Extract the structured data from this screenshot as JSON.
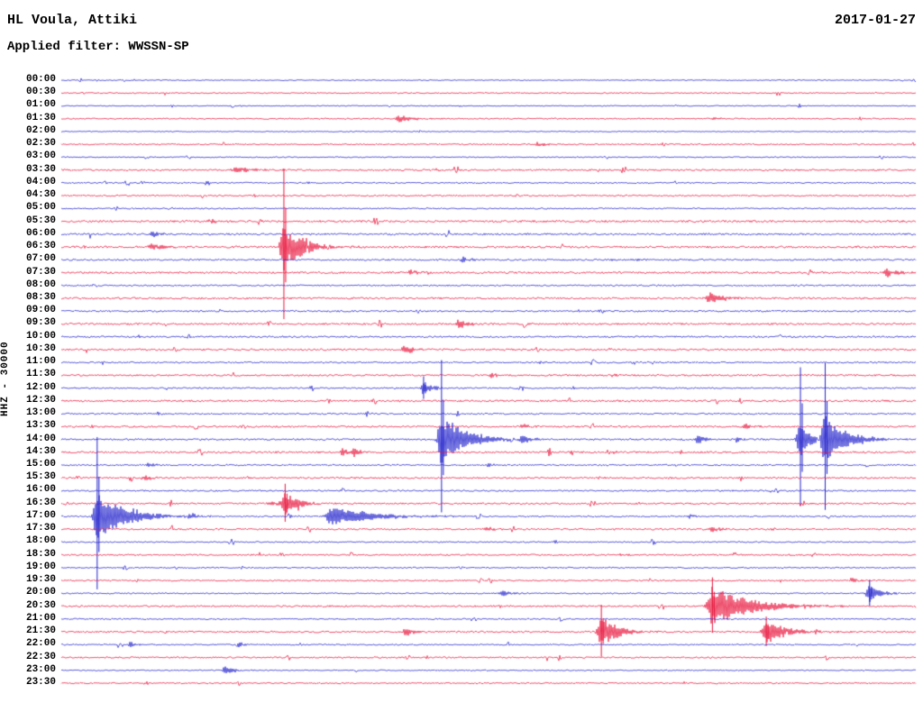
{
  "header": {
    "station": "HL Voula, Attiki",
    "filter": "Applied filter: WWSSN-SP",
    "date": "2017-01-27"
  },
  "chart_data": {
    "type": "line",
    "subtype": "helicorder-daily-seismogram",
    "title": "HL Voula, Attiki",
    "date": "2017-01-27",
    "filter": "WWSSN-SP",
    "y_axis_label": "HHZ - 30000",
    "row_interval_minutes": 30,
    "time_range": [
      "00:00",
      "23:30"
    ],
    "colors": {
      "hour_rows": "#2323cc",
      "half_hour_rows": "#e8173d"
    },
    "rows": [
      {
        "time": "00:00",
        "n": 0.5,
        "events": []
      },
      {
        "time": "00:30",
        "n": 0.6,
        "events": []
      },
      {
        "time": "01:00",
        "n": 0.5,
        "events": []
      },
      {
        "time": "01:30",
        "n": 0.7,
        "events": [
          {
            "x": 0.396,
            "a": 4,
            "r": 4,
            "d": 14
          },
          {
            "x": 0.762,
            "a": 2,
            "r": 2,
            "d": 8
          }
        ]
      },
      {
        "time": "02:00",
        "n": 0.5,
        "events": []
      },
      {
        "time": "02:30",
        "n": 0.7,
        "events": [
          {
            "x": 0.558,
            "a": 2.5,
            "r": 3,
            "d": 10
          }
        ]
      },
      {
        "time": "03:00",
        "n": 0.6,
        "events": []
      },
      {
        "time": "03:30",
        "n": 0.9,
        "events": [
          {
            "x": 0.205,
            "a": 3,
            "r": 6,
            "d": 20
          },
          {
            "x": 0.44,
            "a": 1.5,
            "r": 3,
            "d": 8
          }
        ]
      },
      {
        "time": "04:00",
        "n": 0.7,
        "events": []
      },
      {
        "time": "04:30",
        "n": 0.8,
        "events": []
      },
      {
        "time": "05:00",
        "n": 0.7,
        "events": []
      },
      {
        "time": "05:30",
        "n": 1.1,
        "events": [
          {
            "x": 0.175,
            "a": 2,
            "r": 4,
            "d": 12
          }
        ]
      },
      {
        "time": "06:00",
        "n": 1.0,
        "events": [
          {
            "x": 0.108,
            "a": 2.5,
            "r": 4,
            "d": 12
          }
        ]
      },
      {
        "time": "06:30",
        "n": 1.1,
        "events": [
          {
            "x": 0.106,
            "a": 4,
            "r": 5,
            "d": 16
          },
          {
            "x": 0.2605,
            "a": 26,
            "r": 4,
            "d": 20,
            "s": 87
          }
        ]
      },
      {
        "time": "07:00",
        "n": 0.9,
        "events": [
          {
            "x": 0.47,
            "a": 3,
            "r": 3,
            "d": 10
          },
          {
            "x": 0.667,
            "a": 2,
            "r": 2,
            "d": 8
          }
        ]
      },
      {
        "time": "07:30",
        "n": 1.0,
        "events": [
          {
            "x": 0.408,
            "a": 3,
            "r": 3,
            "d": 10
          },
          {
            "x": 0.967,
            "a": 5,
            "r": 4,
            "d": 12
          }
        ]
      },
      {
        "time": "08:00",
        "n": 0.8,
        "events": []
      },
      {
        "time": "08:30",
        "n": 1.0,
        "events": [
          {
            "x": 0.76,
            "a": 6,
            "r": 5,
            "d": 16
          }
        ]
      },
      {
        "time": "09:00",
        "n": 0.9,
        "events": [
          {
            "x": 0.63,
            "a": 2,
            "r": 2,
            "d": 8
          }
        ]
      },
      {
        "time": "09:30",
        "n": 1.0,
        "events": [
          {
            "x": 0.466,
            "a": 6,
            "r": 3,
            "d": 9
          }
        ]
      },
      {
        "time": "10:00",
        "n": 0.9,
        "events": []
      },
      {
        "time": "10:30",
        "n": 1.0,
        "events": [
          {
            "x": 0.403,
            "a": 5,
            "r": 4,
            "d": 12
          }
        ]
      },
      {
        "time": "11:00",
        "n": 0.8,
        "events": [
          {
            "x": 0.56,
            "a": 1.5,
            "r": 2,
            "d": 6
          }
        ]
      },
      {
        "time": "11:30",
        "n": 0.9,
        "events": [
          {
            "x": 0.503,
            "a": 3,
            "r": 3,
            "d": 9
          },
          {
            "x": 0.645,
            "a": 2,
            "r": 2,
            "d": 7
          }
        ]
      },
      {
        "time": "12:00",
        "n": 0.8,
        "events": [
          {
            "x": 0.424,
            "a": 7,
            "r": 3,
            "d": 10,
            "s": 13
          }
        ]
      },
      {
        "time": "12:30",
        "n": 1.0,
        "events": []
      },
      {
        "time": "13:00",
        "n": 0.8,
        "events": []
      },
      {
        "time": "13:30",
        "n": 0.9,
        "events": [
          {
            "x": 0.54,
            "a": 3,
            "r": 3,
            "d": 9
          },
          {
            "x": 0.8,
            "a": 3,
            "r": 3,
            "d": 9
          }
        ]
      },
      {
        "time": "14:00",
        "n": 0.9,
        "events": [
          {
            "x": 0.445,
            "a": 28,
            "r": 4,
            "d": 26,
            "s": 88
          },
          {
            "x": 0.54,
            "a": 4,
            "r": 3,
            "d": 9
          },
          {
            "x": 0.745,
            "a": 5,
            "r": 3,
            "d": 9
          },
          {
            "x": 0.79,
            "a": 3,
            "r": 2,
            "d": 7
          },
          {
            "x": 0.865,
            "a": 20,
            "r": 4,
            "d": 10,
            "s": 80
          },
          {
            "x": 0.894,
            "a": 28,
            "r": 4,
            "d": 22,
            "s": 85
          }
        ]
      },
      {
        "time": "14:30",
        "n": 1.0,
        "events": [
          {
            "x": 0.329,
            "a": 5,
            "r": 2,
            "d": 6
          },
          {
            "x": 0.343,
            "a": 5,
            "r": 2,
            "d": 7
          },
          {
            "x": 0.645,
            "a": 2,
            "r": 2,
            "d": 6
          },
          {
            "x": 0.725,
            "a": 2,
            "r": 2,
            "d": 6
          }
        ]
      },
      {
        "time": "15:00",
        "n": 0.8,
        "events": [
          {
            "x": 0.102,
            "a": 3,
            "r": 3,
            "d": 9
          },
          {
            "x": 0.5,
            "a": 2,
            "r": 2,
            "d": 6
          }
        ]
      },
      {
        "time": "15:30",
        "n": 0.9,
        "events": [
          {
            "x": 0.097,
            "a": 3,
            "r": 3,
            "d": 9
          }
        ]
      },
      {
        "time": "16:00",
        "n": 0.8,
        "events": []
      },
      {
        "time": "16:30",
        "n": 0.9,
        "events": [
          {
            "x": 0.245,
            "a": 3,
            "r": 3,
            "d": 8
          },
          {
            "x": 0.262,
            "a": 13,
            "r": 4,
            "d": 14,
            "s": 22
          }
        ]
      },
      {
        "time": "17:00",
        "n": 0.8,
        "events": [
          {
            "x": 0.042,
            "a": 26,
            "r": 4,
            "d": 30,
            "s": 88
          },
          {
            "x": 0.15,
            "a": 2,
            "r": 2,
            "d": 6
          },
          {
            "x": 0.316,
            "a": 10,
            "r": 6,
            "d": 45
          },
          {
            "x": 0.735,
            "a": 2.5,
            "r": 2,
            "d": 6
          }
        ]
      },
      {
        "time": "17:30",
        "n": 0.9,
        "events": [
          {
            "x": 0.498,
            "a": 3,
            "r": 3,
            "d": 9
          },
          {
            "x": 0.762,
            "a": 3,
            "r": 3,
            "d": 9
          }
        ]
      },
      {
        "time": "18:00",
        "n": 0.7,
        "events": []
      },
      {
        "time": "18:30",
        "n": 0.8,
        "events": [
          {
            "x": 0.655,
            "a": 2,
            "r": 2,
            "d": 6
          }
        ]
      },
      {
        "time": "19:00",
        "n": 0.7,
        "events": []
      },
      {
        "time": "19:30",
        "n": 0.8,
        "events": [
          {
            "x": 0.925,
            "a": 3,
            "r": 2,
            "d": 7
          }
        ]
      },
      {
        "time": "20:00",
        "n": 0.7,
        "events": [
          {
            "x": 0.515,
            "a": 4,
            "r": 3,
            "d": 9
          },
          {
            "x": 0.946,
            "a": 10,
            "r": 4,
            "d": 12,
            "s": 15
          }
        ]
      },
      {
        "time": "20:30",
        "n": 0.9,
        "events": [
          {
            "x": 0.762,
            "a": 22,
            "r": 5,
            "d": 42,
            "s": 32
          }
        ]
      },
      {
        "time": "21:00",
        "n": 0.7,
        "events": []
      },
      {
        "time": "21:30",
        "n": 0.9,
        "events": [
          {
            "x": 0.403,
            "a": 5,
            "r": 3,
            "d": 8
          },
          {
            "x": 0.632,
            "a": 19,
            "r": 4,
            "d": 16,
            "s": 30
          },
          {
            "x": 0.825,
            "a": 13,
            "r": 4,
            "d": 22,
            "s": 17
          }
        ]
      },
      {
        "time": "22:00",
        "n": 0.7,
        "events": [
          {
            "x": 0.081,
            "a": 3,
            "r": 2,
            "d": 7
          },
          {
            "x": 0.208,
            "a": 3,
            "r": 2,
            "d": 7
          }
        ]
      },
      {
        "time": "22:30",
        "n": 0.8,
        "events": []
      },
      {
        "time": "23:00",
        "n": 0.6,
        "events": [
          {
            "x": 0.192,
            "a": 6,
            "r": 3,
            "d": 9
          }
        ]
      },
      {
        "time": "23:30",
        "n": 0.7,
        "events": []
      }
    ]
  }
}
